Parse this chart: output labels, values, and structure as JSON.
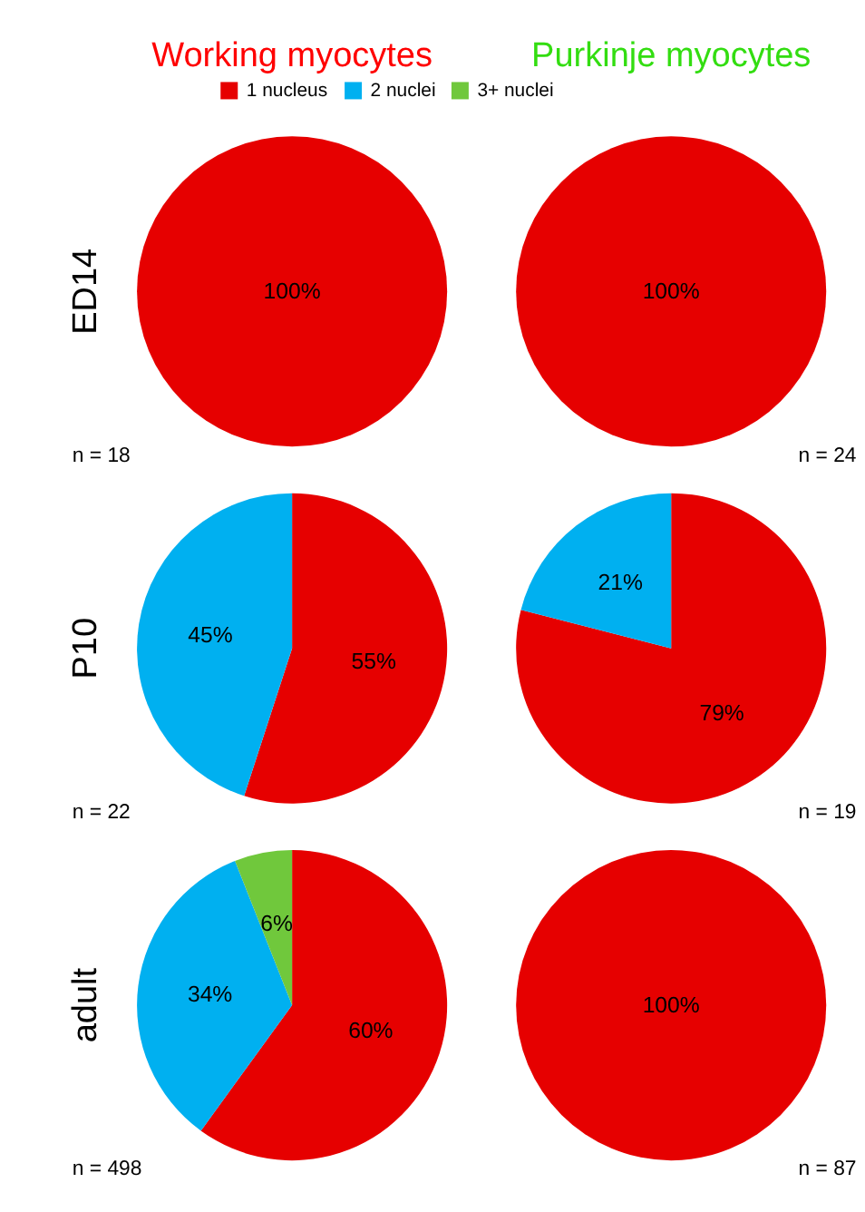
{
  "chart_data": [
    {
      "type": "pie",
      "title": "Working myocytes",
      "ylabel": "ED14",
      "legend": "top",
      "categories": [
        "1 nucleus",
        "2 nuclei",
        "3+ nuclei"
      ],
      "values": [
        100,
        0,
        0
      ],
      "colors": [
        "#e60000",
        "#00b0f0",
        "#70c83c"
      ],
      "value_labels": [
        "100%",
        null,
        null
      ],
      "annotations": [
        "n = 18"
      ]
    },
    {
      "type": "pie",
      "title": "Purkinje myocytes",
      "categories": [
        null,
        null,
        null
      ],
      "values": [
        100,
        0,
        0
      ],
      "colors": [
        "#e60000",
        "#00b0f0",
        "#70c83c"
      ],
      "value_labels": [
        "100%",
        null,
        null
      ],
      "annotations": [
        "n = 24"
      ]
    },
    {
      "type": "pie",
      "ylabel": "P10",
      "categories": [
        null,
        null,
        null
      ],
      "values": [
        55,
        45,
        0
      ],
      "colors": [
        "#e60000",
        "#00b0f0",
        "#70c83c"
      ],
      "value_labels": [
        "55%",
        "45%",
        null
      ],
      "annotations": [
        "n = 22"
      ]
    },
    {
      "type": "pie",
      "categories": [
        null,
        null,
        null
      ],
      "values": [
        79,
        21,
        0
      ],
      "colors": [
        "#e60000",
        "#00b0f0",
        "#70c83c"
      ],
      "value_labels": [
        "79%",
        "21%",
        null
      ],
      "annotations": [
        "n = 19"
      ]
    },
    {
      "type": "pie",
      "ylabel": "adult",
      "categories": [
        null,
        null,
        null
      ],
      "values": [
        60,
        34,
        6
      ],
      "colors": [
        "#e60000",
        "#00b0f0",
        "#70c83c"
      ],
      "value_labels": [
        "60%",
        "34%",
        "6%"
      ],
      "annotations": [
        "n = 498"
      ]
    },
    {
      "type": "pie",
      "categories": [
        null,
        null,
        null
      ],
      "values": [
        100,
        0,
        0
      ],
      "colors": [
        "#e60000",
        "#00b0f0",
        "#70c83c"
      ],
      "value_labels": [
        "100%",
        null,
        null
      ],
      "annotations": [
        "n = 87"
      ]
    }
  ]
}
